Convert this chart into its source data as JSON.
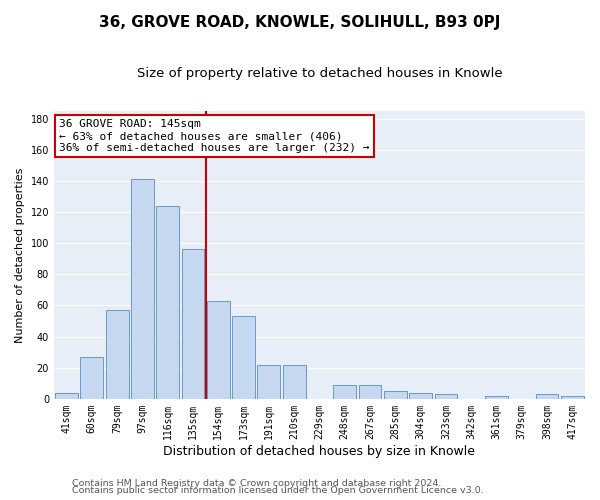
{
  "title": "36, GROVE ROAD, KNOWLE, SOLIHULL, B93 0PJ",
  "subtitle": "Size of property relative to detached houses in Knowle",
  "xlabel": "Distribution of detached houses by size in Knowle",
  "ylabel": "Number of detached properties",
  "bin_labels": [
    "41sqm",
    "60sqm",
    "79sqm",
    "97sqm",
    "116sqm",
    "135sqm",
    "154sqm",
    "173sqm",
    "191sqm",
    "210sqm",
    "229sqm",
    "248sqm",
    "267sqm",
    "285sqm",
    "304sqm",
    "323sqm",
    "342sqm",
    "361sqm",
    "379sqm",
    "398sqm",
    "417sqm"
  ],
  "bar_values": [
    4,
    27,
    57,
    141,
    124,
    96,
    63,
    53,
    22,
    22,
    0,
    9,
    9,
    5,
    4,
    3,
    0,
    2,
    0,
    3,
    2
  ],
  "bar_color": "#c5d8ef",
  "bar_edge_color": "#6699cc",
  "vline_x": 5.5,
  "vline_color": "#cc0000",
  "annotation_line1": "36 GROVE ROAD: 145sqm",
  "annotation_line2": "← 63% of detached houses are smaller (406)",
  "annotation_line3": "36% of semi-detached houses are larger (232) →",
  "annotation_box_color": "#ffffff",
  "annotation_box_edge_color": "#cc0000",
  "ylim": [
    0,
    185
  ],
  "yticks": [
    0,
    20,
    40,
    60,
    80,
    100,
    120,
    140,
    160,
    180
  ],
  "footer_line1": "Contains HM Land Registry data © Crown copyright and database right 2024.",
  "footer_line2": "Contains public sector information licensed under the Open Government Licence v3.0.",
  "fig_bg_color": "#ffffff",
  "plot_bg_color": "#e8eef7",
  "grid_color": "#ffffff",
  "title_fontsize": 11,
  "subtitle_fontsize": 9.5,
  "ylabel_fontsize": 8,
  "xlabel_fontsize": 9,
  "tick_fontsize": 7,
  "annotation_fontsize": 8,
  "footer_fontsize": 6.8
}
